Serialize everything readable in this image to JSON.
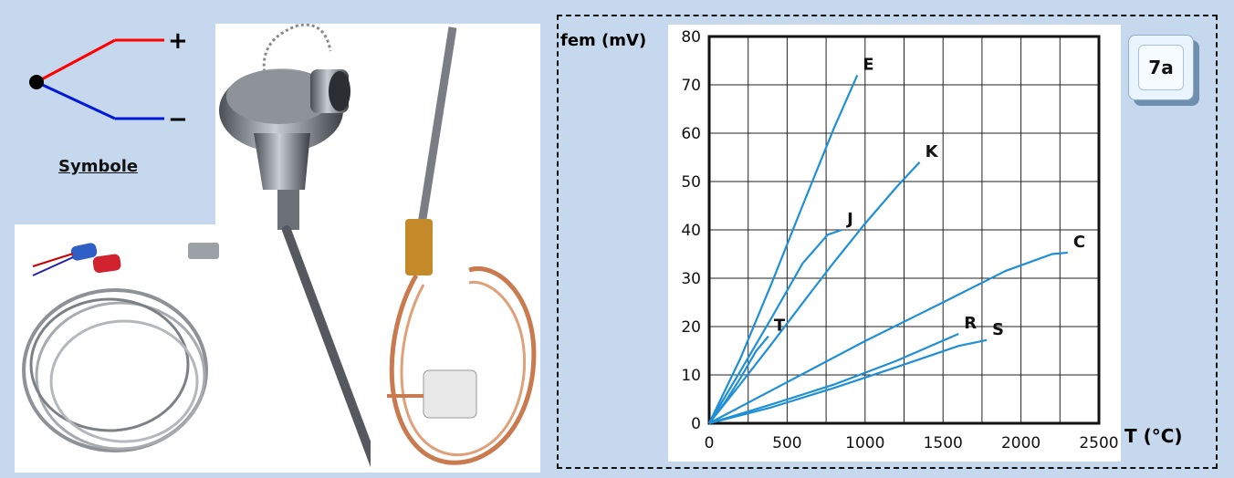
{
  "symbol": {
    "caption": "Symbole",
    "plus": "+",
    "minus": "−"
  },
  "badge": "7a",
  "colors": {
    "positive_wire": "#ff0000",
    "negative_wire": "#0018d8",
    "curves": "#1f8fd6",
    "background": "#c5d8ee"
  },
  "chart_data": {
    "type": "line",
    "title": "",
    "xlabel": "T (°C)",
    "ylabel": "fem (mV)",
    "xlim": [
      0,
      2500
    ],
    "ylim": [
      0,
      80
    ],
    "x_ticks": [
      "0",
      "500",
      "1000",
      "1500",
      "2000",
      "2500"
    ],
    "y_ticks": [
      "0",
      "10",
      "20",
      "30",
      "40",
      "50",
      "60",
      "70",
      "80"
    ],
    "grid": true,
    "series": [
      {
        "name": "E",
        "points": [
          [
            0,
            0
          ],
          [
            200,
            13.4
          ],
          [
            400,
            28.9
          ],
          [
            600,
            45.1
          ],
          [
            800,
            61.0
          ],
          [
            950,
            72.0
          ]
        ]
      },
      {
        "name": "J",
        "points": [
          [
            0,
            0
          ],
          [
            200,
            10.8
          ],
          [
            400,
            21.8
          ],
          [
            600,
            33.1
          ],
          [
            760,
            39.0
          ],
          [
            850,
            40.0
          ]
        ]
      },
      {
        "name": "K",
        "points": [
          [
            0,
            0
          ],
          [
            200,
            8.1
          ],
          [
            400,
            16.4
          ],
          [
            600,
            24.9
          ],
          [
            800,
            33.3
          ],
          [
            1000,
            41.3
          ],
          [
            1200,
            48.8
          ],
          [
            1350,
            54.0
          ]
        ]
      },
      {
        "name": "T",
        "points": [
          [
            0,
            0
          ],
          [
            100,
            4.3
          ],
          [
            200,
            9.3
          ],
          [
            300,
            14.9
          ],
          [
            380,
            18.0
          ]
        ]
      },
      {
        "name": "C",
        "points": [
          [
            0,
            0
          ],
          [
            500,
            8.5
          ],
          [
            1000,
            17.0
          ],
          [
            1500,
            25.0
          ],
          [
            1900,
            31.5
          ],
          [
            2200,
            35.0
          ],
          [
            2300,
            35.3
          ]
        ]
      },
      {
        "name": "R",
        "points": [
          [
            0,
            0
          ],
          [
            400,
            3.9
          ],
          [
            800,
            8.0
          ],
          [
            1200,
            12.9
          ],
          [
            1600,
            18.5
          ]
        ]
      },
      {
        "name": "S",
        "points": [
          [
            0,
            0
          ],
          [
            400,
            3.3
          ],
          [
            800,
            7.3
          ],
          [
            1200,
            11.6
          ],
          [
            1600,
            16.0
          ],
          [
            1780,
            17.2
          ]
        ]
      }
    ]
  }
}
